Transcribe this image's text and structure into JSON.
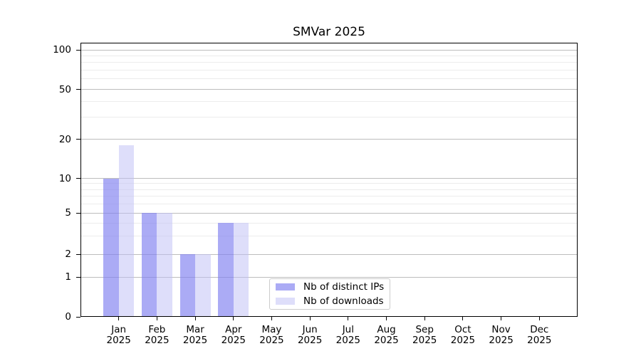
{
  "title": "SMVar 2025",
  "chart_data": {
    "type": "bar",
    "title": "SMVar 2025",
    "categories": [
      "Jan 2025",
      "Feb 2025",
      "Mar 2025",
      "Apr 2025",
      "May 2025",
      "Jun 2025",
      "Jul 2025",
      "Aug 2025",
      "Sep 2025",
      "Oct 2025",
      "Nov 2025",
      "Dec 2025"
    ],
    "month_labels": [
      "Jan",
      "Feb",
      "Mar",
      "Apr",
      "May",
      "Jun",
      "Jul",
      "Aug",
      "Sep",
      "Oct",
      "Nov",
      "Dec"
    ],
    "year_label": "2025",
    "series": [
      {
        "name": "Nb of distinct IPs",
        "color": "rgba(128,128,240,0.66)",
        "solid_color": "#aaaaf2",
        "values": [
          10,
          5,
          2,
          4,
          0,
          0,
          0,
          0,
          0,
          0,
          0,
          0
        ]
      },
      {
        "name": "Nb of downloads",
        "color": "rgba(190,190,245,0.5)",
        "solid_color": "#dcdcf8",
        "values": [
          18,
          5,
          2,
          4,
          0,
          0,
          0,
          0,
          0,
          0,
          0,
          0
        ]
      }
    ],
    "y_axis": {
      "scale": "symlog",
      "major_ticks": [
        0,
        1,
        2,
        5,
        10,
        20,
        50,
        100
      ],
      "minor_ticks": [
        3,
        4,
        6,
        7,
        8,
        9,
        30,
        40,
        60,
        70,
        80,
        90
      ],
      "ylim": [
        0,
        112
      ]
    },
    "x_axis": {
      "tick_count": 12
    },
    "legend": {
      "location": "lower center",
      "border_color": "#cccccc"
    },
    "grid": {
      "major_color": "#bdbdbd",
      "minor_color": "#ececec"
    },
    "spine_color": "#000000",
    "background": "#ffffff"
  }
}
